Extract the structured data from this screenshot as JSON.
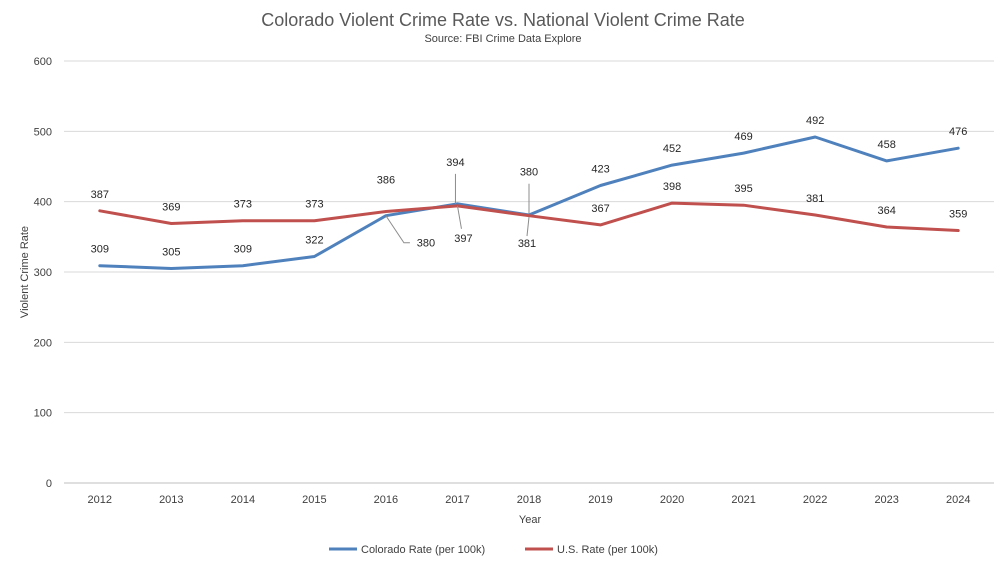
{
  "chart_data": {
    "type": "line",
    "title": "Colorado Violent Crime Rate vs. National Violent Crime Rate",
    "subtitle": "Source: FBI Crime Data Explore",
    "xlabel": "Year",
    "ylabel": "Violent Crime Rate",
    "ylim": [
      0,
      600
    ],
    "yticks": [
      0,
      100,
      200,
      300,
      400,
      500,
      600
    ],
    "grid": true,
    "legend_position": "bottom",
    "categories": [
      "2012",
      "2013",
      "2014",
      "2015",
      "2016",
      "2017",
      "2018",
      "2019",
      "2020",
      "2021",
      "2022",
      "2023",
      "2024"
    ],
    "series": [
      {
        "name": "Colorado Rate (per 100k)",
        "color": "#4f81bd",
        "values": [
          309,
          305,
          309,
          322,
          380,
          397,
          381,
          423,
          452,
          469,
          492,
          458,
          476
        ]
      },
      {
        "name": "U.S. Rate (per 100k)",
        "color": "#c0504d",
        "values": [
          387,
          369,
          373,
          373,
          386,
          394,
          380,
          367,
          398,
          395,
          381,
          364,
          359
        ]
      }
    ]
  }
}
